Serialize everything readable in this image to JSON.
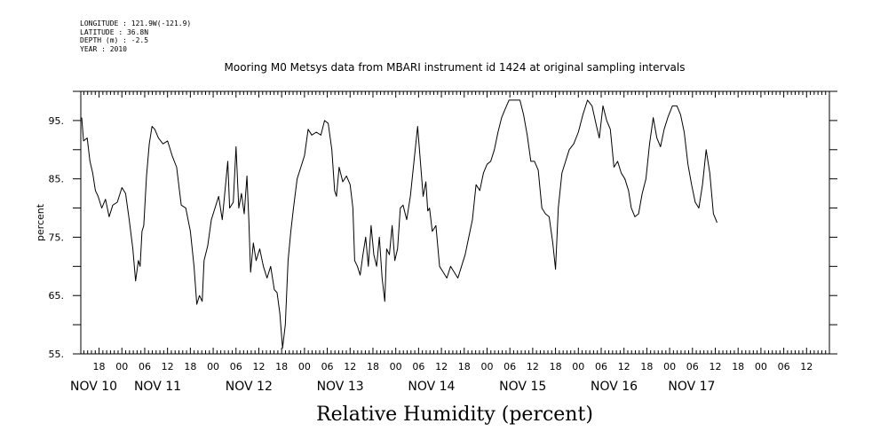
{
  "header": {
    "lines": [
      "LONGITUDE : 121.9W(-121.9)",
      "LATITUDE : 36.8N",
      "DEPTH (m) : -2.5",
      "YEAR : 2010"
    ]
  },
  "chart_data": {
    "type": "line",
    "title": "Mooring M0 Metsys data from MBARI instrument id 1424 at original sampling intervals",
    "xlabel": "Relative Humidity (percent)",
    "ylabel": "percent",
    "ylim": [
      55,
      100
    ],
    "y_ticks": [
      55,
      65,
      75,
      85,
      95
    ],
    "y_tick_labels": [
      "55.",
      "65.",
      "75.",
      "85.",
      "95."
    ],
    "xlim": [
      9.55,
      17.75
    ],
    "x_unit": "day of November 2010 (fractional)",
    "hour_ticks": [
      {
        "x": 9.75,
        "label": "18"
      },
      {
        "x": 10.0,
        "label": "00"
      },
      {
        "x": 10.25,
        "label": "06"
      },
      {
        "x": 10.5,
        "label": "12"
      },
      {
        "x": 10.75,
        "label": "18"
      },
      {
        "x": 11.0,
        "label": "00"
      },
      {
        "x": 11.25,
        "label": "06"
      },
      {
        "x": 11.5,
        "label": "12"
      },
      {
        "x": 11.75,
        "label": "18"
      },
      {
        "x": 12.0,
        "label": "00"
      },
      {
        "x": 12.25,
        "label": "06"
      },
      {
        "x": 12.5,
        "label": "12"
      },
      {
        "x": 12.75,
        "label": "18"
      },
      {
        "x": 13.0,
        "label": "00"
      },
      {
        "x": 13.25,
        "label": "06"
      },
      {
        "x": 13.5,
        "label": "12"
      },
      {
        "x": 13.75,
        "label": "18"
      },
      {
        "x": 14.0,
        "label": "00"
      },
      {
        "x": 14.25,
        "label": "06"
      },
      {
        "x": 14.5,
        "label": "12"
      },
      {
        "x": 14.75,
        "label": "18"
      },
      {
        "x": 15.0,
        "label": "00"
      },
      {
        "x": 15.25,
        "label": "06"
      },
      {
        "x": 15.5,
        "label": "12"
      },
      {
        "x": 15.75,
        "label": "18"
      },
      {
        "x": 16.0,
        "label": "00"
      },
      {
        "x": 16.25,
        "label": "06"
      },
      {
        "x": 16.5,
        "label": "12"
      },
      {
        "x": 16.75,
        "label": "18"
      },
      {
        "x": 17.0,
        "label": "00"
      },
      {
        "x": 17.25,
        "label": "06"
      },
      {
        "x": 17.5,
        "label": "12"
      }
    ],
    "day_labels": [
      {
        "x": 9.55,
        "label": "NOV 10"
      },
      {
        "x": 10.25,
        "label": "NOV 11"
      },
      {
        "x": 11.25,
        "label": "NOV 12"
      },
      {
        "x": 12.25,
        "label": "NOV 13"
      },
      {
        "x": 13.25,
        "label": "NOV 14"
      },
      {
        "x": 14.25,
        "label": "NOV 15"
      },
      {
        "x": 15.25,
        "label": "NOV 16"
      },
      {
        "x": 16.1,
        "label": "NOV 17"
      }
    ],
    "grid": false,
    "series": [
      {
        "line_color": "#000000",
        "points": [
          [
            9.56,
            95.5
          ],
          [
            9.58,
            91.5
          ],
          [
            9.62,
            92.0
          ],
          [
            9.65,
            88.0
          ],
          [
            9.68,
            86.0
          ],
          [
            9.71,
            83.0
          ],
          [
            9.74,
            82.0
          ],
          [
            9.78,
            80.0
          ],
          [
            9.82,
            81.5
          ],
          [
            9.86,
            78.5
          ],
          [
            9.9,
            80.5
          ],
          [
            9.95,
            81.0
          ],
          [
            10.0,
            83.5
          ],
          [
            10.04,
            82.5
          ],
          [
            10.08,
            78.0
          ],
          [
            10.12,
            73.0
          ],
          [
            10.15,
            67.5
          ],
          [
            10.18,
            71.0
          ],
          [
            10.2,
            70.0
          ],
          [
            10.22,
            76.0
          ],
          [
            10.24,
            77.0
          ],
          [
            10.27,
            85.5
          ],
          [
            10.3,
            91.0
          ],
          [
            10.33,
            94.0
          ],
          [
            10.36,
            93.5
          ],
          [
            10.4,
            92.0
          ],
          [
            10.45,
            91.0
          ],
          [
            10.5,
            91.5
          ],
          [
            10.55,
            89.0
          ],
          [
            10.6,
            87.0
          ],
          [
            10.65,
            80.5
          ],
          [
            10.7,
            80.0
          ],
          [
            10.75,
            76.0
          ],
          [
            10.79,
            70.0
          ],
          [
            10.82,
            63.5
          ],
          [
            10.85,
            65.0
          ],
          [
            10.88,
            64.0
          ],
          [
            10.9,
            71.0
          ],
          [
            10.94,
            73.5
          ],
          [
            10.98,
            78.0
          ],
          [
            11.02,
            80.0
          ],
          [
            11.06,
            82.0
          ],
          [
            11.1,
            78.0
          ],
          [
            11.13,
            83.0
          ],
          [
            11.16,
            88.0
          ],
          [
            11.18,
            80.0
          ],
          [
            11.22,
            81.0
          ],
          [
            11.25,
            90.5
          ],
          [
            11.28,
            80.0
          ],
          [
            11.31,
            82.5
          ],
          [
            11.34,
            79.0
          ],
          [
            11.37,
            85.5
          ],
          [
            11.39,
            78.0
          ],
          [
            11.41,
            69.0
          ],
          [
            11.44,
            74.0
          ],
          [
            11.47,
            71.0
          ],
          [
            11.51,
            73.0
          ],
          [
            11.55,
            70.0
          ],
          [
            11.59,
            68.0
          ],
          [
            11.63,
            70.0
          ],
          [
            11.67,
            66.0
          ],
          [
            11.7,
            65.5
          ],
          [
            11.73,
            62.0
          ],
          [
            11.76,
            56.0
          ],
          [
            11.79,
            60.0
          ],
          [
            11.82,
            71.0
          ],
          [
            11.85,
            76.0
          ],
          [
            11.88,
            80.0
          ],
          [
            11.92,
            85.0
          ],
          [
            11.96,
            87.0
          ],
          [
            12.0,
            89.0
          ],
          [
            12.04,
            93.5
          ],
          [
            12.08,
            92.5
          ],
          [
            12.13,
            93.0
          ],
          [
            12.18,
            92.5
          ],
          [
            12.22,
            95.0
          ],
          [
            12.26,
            94.5
          ],
          [
            12.3,
            90.0
          ],
          [
            12.33,
            83.0
          ],
          [
            12.35,
            82.0
          ],
          [
            12.38,
            87.0
          ],
          [
            12.42,
            84.5
          ],
          [
            12.46,
            85.5
          ],
          [
            12.5,
            84.0
          ],
          [
            12.53,
            80.0
          ],
          [
            12.55,
            71.0
          ],
          [
            12.58,
            70.0
          ],
          [
            12.61,
            68.5
          ],
          [
            12.64,
            72.0
          ],
          [
            12.67,
            75.0
          ],
          [
            12.7,
            70.0
          ],
          [
            12.73,
            77.0
          ],
          [
            12.76,
            72.0
          ],
          [
            12.79,
            70.0
          ],
          [
            12.82,
            75.0
          ],
          [
            12.85,
            68.0
          ],
          [
            12.88,
            64.0
          ],
          [
            12.9,
            73.0
          ],
          [
            12.93,
            72.0
          ],
          [
            12.96,
            77.0
          ],
          [
            12.99,
            71.0
          ],
          [
            13.02,
            73.0
          ],
          [
            13.05,
            80.0
          ],
          [
            13.08,
            80.5
          ],
          [
            13.12,
            78.0
          ],
          [
            13.16,
            82.0
          ],
          [
            13.2,
            88.0
          ],
          [
            13.24,
            94.0
          ],
          [
            13.27,
            88.0
          ],
          [
            13.3,
            82.0
          ],
          [
            13.33,
            84.5
          ],
          [
            13.35,
            79.5
          ],
          [
            13.37,
            80.0
          ],
          [
            13.4,
            76.0
          ],
          [
            13.44,
            77.0
          ],
          [
            13.48,
            70.0
          ],
          [
            13.52,
            69.0
          ],
          [
            13.56,
            68.0
          ],
          [
            13.6,
            70.0
          ],
          [
            13.64,
            69.0
          ],
          [
            13.68,
            68.0
          ],
          [
            13.72,
            70.0
          ],
          [
            13.76,
            72.0
          ],
          [
            13.8,
            75.0
          ],
          [
            13.84,
            78.0
          ],
          [
            13.88,
            84.0
          ],
          [
            13.92,
            83.0
          ],
          [
            13.96,
            86.0
          ],
          [
            14.0,
            87.5
          ],
          [
            14.04,
            88.0
          ],
          [
            14.08,
            90.0
          ],
          [
            14.12,
            93.0
          ],
          [
            14.16,
            95.5
          ],
          [
            14.2,
            97.0
          ],
          [
            14.24,
            98.5
          ],
          [
            14.3,
            98.5
          ],
          [
            14.36,
            98.5
          ],
          [
            14.4,
            96.0
          ],
          [
            14.44,
            92.5
          ],
          [
            14.48,
            88.0
          ],
          [
            14.52,
            88.0
          ],
          [
            14.56,
            86.5
          ],
          [
            14.6,
            80.0
          ],
          [
            14.64,
            79.0
          ],
          [
            14.68,
            78.5
          ],
          [
            14.72,
            74.0
          ],
          [
            14.75,
            69.5
          ],
          [
            14.78,
            80.0
          ],
          [
            14.82,
            86.0
          ],
          [
            14.86,
            88.0
          ],
          [
            14.9,
            90.0
          ],
          [
            14.95,
            91.0
          ],
          [
            15.0,
            93.0
          ],
          [
            15.05,
            96.0
          ],
          [
            15.1,
            98.5
          ],
          [
            15.15,
            97.5
          ],
          [
            15.2,
            94.0
          ],
          [
            15.23,
            92.0
          ],
          [
            15.27,
            97.5
          ],
          [
            15.31,
            95.0
          ],
          [
            15.35,
            93.5
          ],
          [
            15.39,
            87.0
          ],
          [
            15.43,
            88.0
          ],
          [
            15.47,
            86.0
          ],
          [
            15.51,
            85.0
          ],
          [
            15.55,
            83.0
          ],
          [
            15.58,
            80.0
          ],
          [
            15.62,
            78.5
          ],
          [
            15.66,
            79.0
          ],
          [
            15.7,
            82.5
          ],
          [
            15.74,
            85.0
          ],
          [
            15.78,
            91.0
          ],
          [
            15.82,
            95.5
          ],
          [
            15.86,
            92.0
          ],
          [
            15.9,
            90.5
          ],
          [
            15.94,
            93.5
          ],
          [
            15.98,
            95.5
          ],
          [
            16.03,
            97.5
          ],
          [
            16.08,
            97.5
          ],
          [
            16.12,
            96.0
          ],
          [
            16.16,
            93.0
          ],
          [
            16.2,
            87.5
          ],
          [
            16.24,
            84.0
          ],
          [
            16.28,
            81.0
          ],
          [
            16.32,
            80.0
          ],
          [
            16.36,
            84.0
          ],
          [
            16.4,
            90.0
          ],
          [
            16.44,
            86.0
          ],
          [
            16.48,
            79.0
          ],
          [
            16.52,
            77.5
          ]
        ]
      }
    ]
  }
}
